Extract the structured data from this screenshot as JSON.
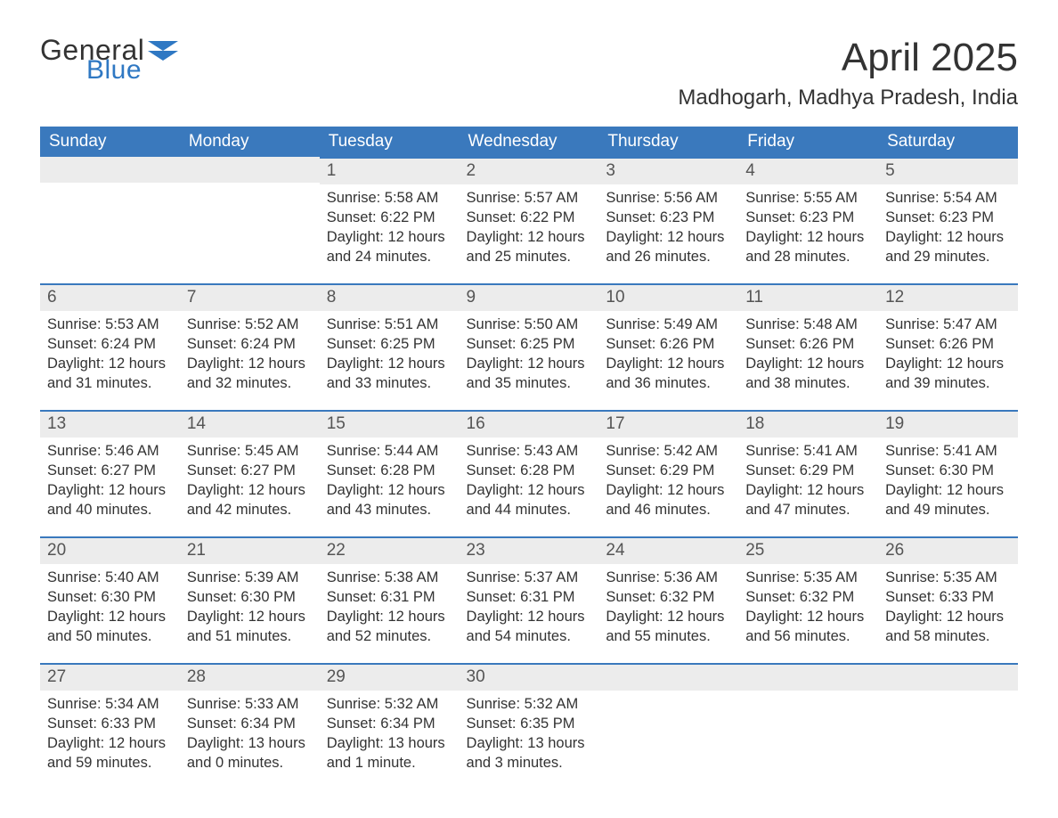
{
  "logo": {
    "word1": "General",
    "word2": "Blue",
    "flag_color": "#2f78c3"
  },
  "title": "April 2025",
  "location": "Madhogarh, Madhya Pradesh, India",
  "colors": {
    "header_bg": "#3a79bd",
    "header_text": "#ffffff",
    "daynum_bg": "#ececec",
    "rule": "#3a79bd",
    "body_text": "#333333",
    "logo_blue": "#2f78c3"
  },
  "weekdays": [
    "Sunday",
    "Monday",
    "Tuesday",
    "Wednesday",
    "Thursday",
    "Friday",
    "Saturday"
  ],
  "weeks": [
    [
      null,
      null,
      {
        "n": "1",
        "sunrise": "5:58 AM",
        "sunset": "6:22 PM",
        "daylight": "12 hours and 24 minutes."
      },
      {
        "n": "2",
        "sunrise": "5:57 AM",
        "sunset": "6:22 PM",
        "daylight": "12 hours and 25 minutes."
      },
      {
        "n": "3",
        "sunrise": "5:56 AM",
        "sunset": "6:23 PM",
        "daylight": "12 hours and 26 minutes."
      },
      {
        "n": "4",
        "sunrise": "5:55 AM",
        "sunset": "6:23 PM",
        "daylight": "12 hours and 28 minutes."
      },
      {
        "n": "5",
        "sunrise": "5:54 AM",
        "sunset": "6:23 PM",
        "daylight": "12 hours and 29 minutes."
      }
    ],
    [
      {
        "n": "6",
        "sunrise": "5:53 AM",
        "sunset": "6:24 PM",
        "daylight": "12 hours and 31 minutes."
      },
      {
        "n": "7",
        "sunrise": "5:52 AM",
        "sunset": "6:24 PM",
        "daylight": "12 hours and 32 minutes."
      },
      {
        "n": "8",
        "sunrise": "5:51 AM",
        "sunset": "6:25 PM",
        "daylight": "12 hours and 33 minutes."
      },
      {
        "n": "9",
        "sunrise": "5:50 AM",
        "sunset": "6:25 PM",
        "daylight": "12 hours and 35 minutes."
      },
      {
        "n": "10",
        "sunrise": "5:49 AM",
        "sunset": "6:26 PM",
        "daylight": "12 hours and 36 minutes."
      },
      {
        "n": "11",
        "sunrise": "5:48 AM",
        "sunset": "6:26 PM",
        "daylight": "12 hours and 38 minutes."
      },
      {
        "n": "12",
        "sunrise": "5:47 AM",
        "sunset": "6:26 PM",
        "daylight": "12 hours and 39 minutes."
      }
    ],
    [
      {
        "n": "13",
        "sunrise": "5:46 AM",
        "sunset": "6:27 PM",
        "daylight": "12 hours and 40 minutes."
      },
      {
        "n": "14",
        "sunrise": "5:45 AM",
        "sunset": "6:27 PM",
        "daylight": "12 hours and 42 minutes."
      },
      {
        "n": "15",
        "sunrise": "5:44 AM",
        "sunset": "6:28 PM",
        "daylight": "12 hours and 43 minutes."
      },
      {
        "n": "16",
        "sunrise": "5:43 AM",
        "sunset": "6:28 PM",
        "daylight": "12 hours and 44 minutes."
      },
      {
        "n": "17",
        "sunrise": "5:42 AM",
        "sunset": "6:29 PM",
        "daylight": "12 hours and 46 minutes."
      },
      {
        "n": "18",
        "sunrise": "5:41 AM",
        "sunset": "6:29 PM",
        "daylight": "12 hours and 47 minutes."
      },
      {
        "n": "19",
        "sunrise": "5:41 AM",
        "sunset": "6:30 PM",
        "daylight": "12 hours and 49 minutes."
      }
    ],
    [
      {
        "n": "20",
        "sunrise": "5:40 AM",
        "sunset": "6:30 PM",
        "daylight": "12 hours and 50 minutes."
      },
      {
        "n": "21",
        "sunrise": "5:39 AM",
        "sunset": "6:30 PM",
        "daylight": "12 hours and 51 minutes."
      },
      {
        "n": "22",
        "sunrise": "5:38 AM",
        "sunset": "6:31 PM",
        "daylight": "12 hours and 52 minutes."
      },
      {
        "n": "23",
        "sunrise": "5:37 AM",
        "sunset": "6:31 PM",
        "daylight": "12 hours and 54 minutes."
      },
      {
        "n": "24",
        "sunrise": "5:36 AM",
        "sunset": "6:32 PM",
        "daylight": "12 hours and 55 minutes."
      },
      {
        "n": "25",
        "sunrise": "5:35 AM",
        "sunset": "6:32 PM",
        "daylight": "12 hours and 56 minutes."
      },
      {
        "n": "26",
        "sunrise": "5:35 AM",
        "sunset": "6:33 PM",
        "daylight": "12 hours and 58 minutes."
      }
    ],
    [
      {
        "n": "27",
        "sunrise": "5:34 AM",
        "sunset": "6:33 PM",
        "daylight": "12 hours and 59 minutes."
      },
      {
        "n": "28",
        "sunrise": "5:33 AM",
        "sunset": "6:34 PM",
        "daylight": "13 hours and 0 minutes."
      },
      {
        "n": "29",
        "sunrise": "5:32 AM",
        "sunset": "6:34 PM",
        "daylight": "13 hours and 1 minute."
      },
      {
        "n": "30",
        "sunrise": "5:32 AM",
        "sunset": "6:35 PM",
        "daylight": "13 hours and 3 minutes."
      },
      null,
      null,
      null
    ]
  ],
  "labels": {
    "sunrise": "Sunrise: ",
    "sunset": "Sunset: ",
    "daylight": "Daylight: "
  }
}
